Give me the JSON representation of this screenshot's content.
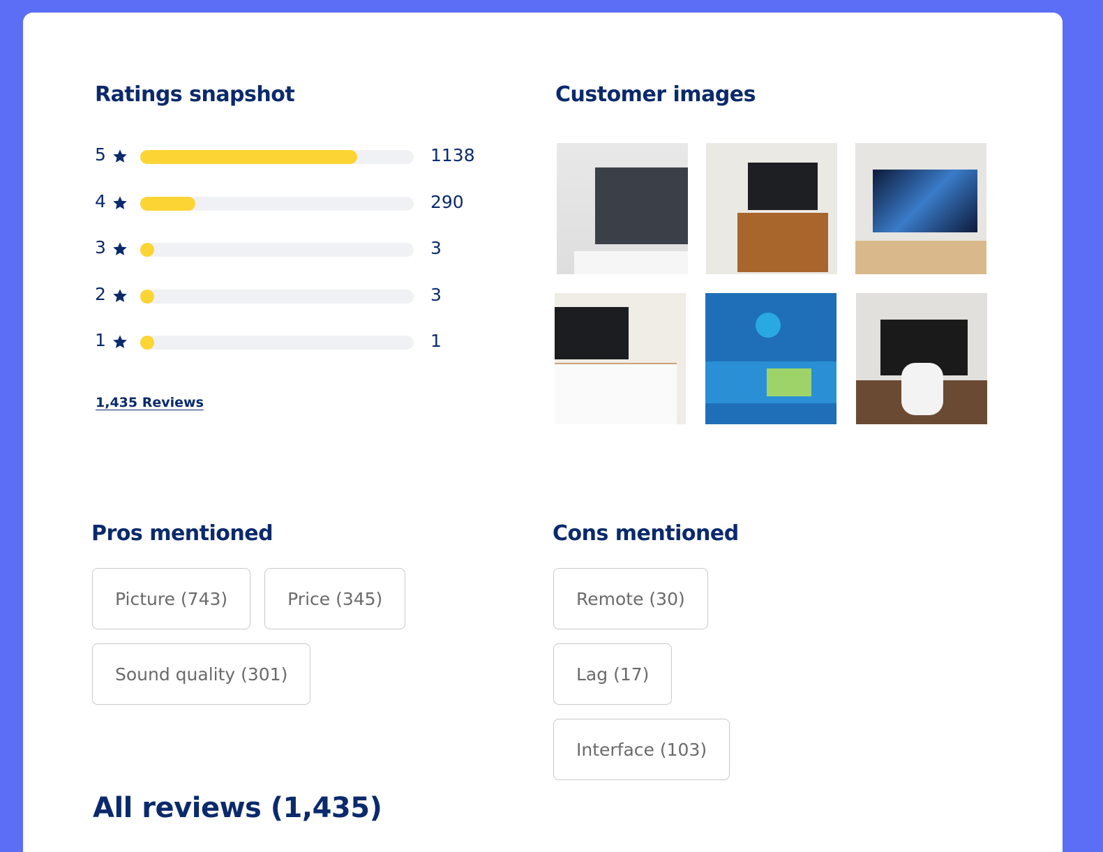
{
  "ratings": {
    "title": "Ratings snapshot",
    "rows": [
      {
        "stars": 5,
        "count": 1138
      },
      {
        "stars": 4,
        "count": 290
      },
      {
        "stars": 3,
        "count": 3
      },
      {
        "stars": 2,
        "count": 3
      },
      {
        "stars": 1,
        "count": 1
      }
    ],
    "reviews_link": "1,435 Reviews"
  },
  "customer_images": {
    "title": "Customer images"
  },
  "pros": {
    "title": "Pros mentioned",
    "chips": [
      "Picture (743)",
      "Price (345)",
      "Sound quality (301)"
    ]
  },
  "cons": {
    "title": "Cons mentioned",
    "chips": [
      "Remote (30)",
      "Lag (17)",
      "Interface (103)"
    ]
  },
  "all_reviews": {
    "title": "All reviews (1,435)"
  }
}
